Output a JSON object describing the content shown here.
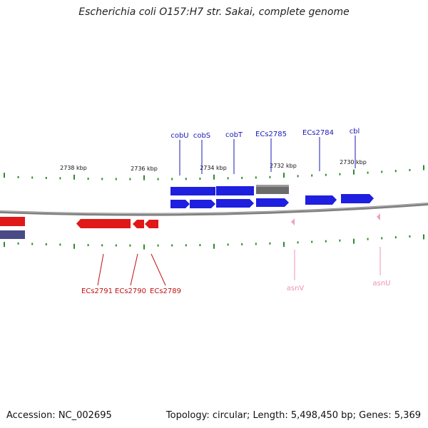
{
  "title": "Escherichia coli O157:H7 str. Sakai, complete genome",
  "footer": {
    "accession": "Accession: NC_002695",
    "info": "Topology: circular; Length: 5,498,450 bp; Genes: 5,369"
  },
  "colors": {
    "backbone": "#808080",
    "forward_gene": "#1f1fe0",
    "forward_pseudo": "#6b6b6b",
    "reverse_gene": "#e01818",
    "reverse_gene_dark": "#4a4a86",
    "rna": "#f0a0c4",
    "tick": "#2e8b2e",
    "fwd_label": "#1a1ab8",
    "rev_label": "#c01010",
    "rna_label": "#f090b8"
  },
  "scale_labels": [
    "2738 kbp",
    "2736 kbp",
    "2734 kbp",
    "2732 kbp",
    "2730 kbp"
  ],
  "forward_labels": [
    "cobU",
    "cobS",
    "cobT",
    "ECs2785",
    "ECs2784",
    "cbl"
  ],
  "reverse_labels": [
    "ECs2791",
    "ECs2790",
    "ECs2789"
  ],
  "rna_labels": [
    "asnV",
    "asnU"
  ]
}
